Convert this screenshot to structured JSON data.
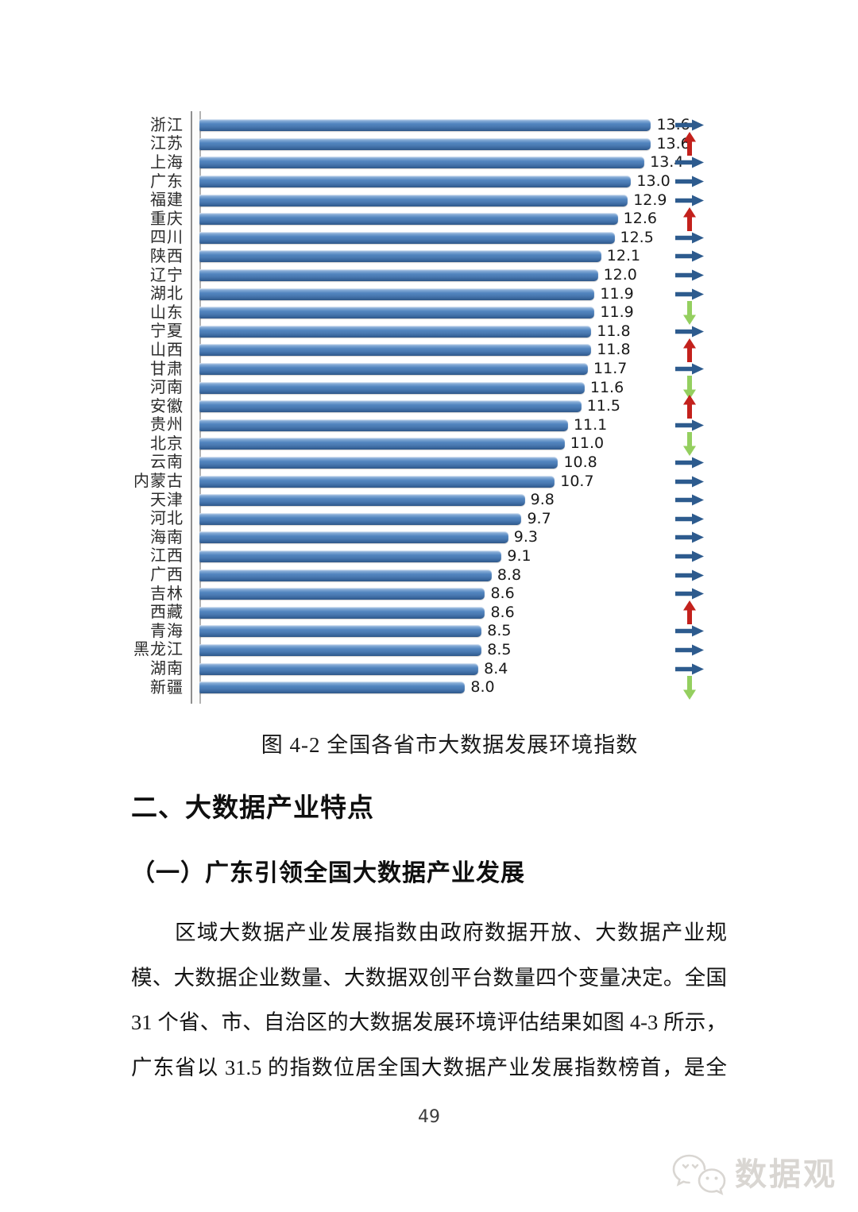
{
  "figure": {
    "caption": "图 4-2 全国各省市大数据发展环境指数"
  },
  "chart_data": {
    "type": "bar",
    "orientation": "horizontal",
    "title": "图 4-2 全国各省市大数据发展环境指数",
    "xlabel": "",
    "ylabel": "",
    "xlim": [
      0,
      15.6
    ],
    "grid": false,
    "legend": "none",
    "value_decimals": 1,
    "bar_color": "#4f81bd",
    "trend_colors": {
      "right": "#2d5b8e",
      "up": "#c3211c",
      "down": "#94cf5f"
    },
    "rows": [
      {
        "name": "浙江",
        "value": 13.6,
        "trend": "right"
      },
      {
        "name": "江苏",
        "value": 13.6,
        "trend": "up"
      },
      {
        "name": "上海",
        "value": 13.4,
        "trend": "right"
      },
      {
        "name": "广东",
        "value": 13.0,
        "trend": "right"
      },
      {
        "name": "福建",
        "value": 12.9,
        "trend": "right"
      },
      {
        "name": "重庆",
        "value": 12.6,
        "trend": "up"
      },
      {
        "name": "四川",
        "value": 12.5,
        "trend": "right"
      },
      {
        "name": "陕西",
        "value": 12.1,
        "trend": "right"
      },
      {
        "name": "辽宁",
        "value": 12.0,
        "trend": "right"
      },
      {
        "name": "湖北",
        "value": 11.9,
        "trend": "right"
      },
      {
        "name": "山东",
        "value": 11.9,
        "trend": "down"
      },
      {
        "name": "宁夏",
        "value": 11.8,
        "trend": "right"
      },
      {
        "name": "山西",
        "value": 11.8,
        "trend": "up"
      },
      {
        "name": "甘肃",
        "value": 11.7,
        "trend": "right"
      },
      {
        "name": "河南",
        "value": 11.6,
        "trend": "down"
      },
      {
        "name": "安徽",
        "value": 11.5,
        "trend": "up"
      },
      {
        "name": "贵州",
        "value": 11.1,
        "trend": "right"
      },
      {
        "name": "北京",
        "value": 11.0,
        "trend": "down"
      },
      {
        "name": "云南",
        "value": 10.8,
        "trend": "right"
      },
      {
        "name": "内蒙古",
        "value": 10.7,
        "trend": "right"
      },
      {
        "name": "天津",
        "value": 9.8,
        "trend": "right"
      },
      {
        "name": "河北",
        "value": 9.7,
        "trend": "right"
      },
      {
        "name": "海南",
        "value": 9.3,
        "trend": "right"
      },
      {
        "name": "江西",
        "value": 9.1,
        "trend": "right"
      },
      {
        "name": "广西",
        "value": 8.8,
        "trend": "right"
      },
      {
        "name": "吉林",
        "value": 8.6,
        "trend": "right"
      },
      {
        "name": "西藏",
        "value": 8.6,
        "trend": "up"
      },
      {
        "name": "青海",
        "value": 8.5,
        "trend": "right"
      },
      {
        "name": "黑龙江",
        "value": 8.5,
        "trend": "right"
      },
      {
        "name": "湖南",
        "value": 8.4,
        "trend": "right"
      },
      {
        "name": "新疆",
        "value": 8.0,
        "trend": "down"
      }
    ]
  },
  "sections": {
    "heading": "二、大数据产业特点",
    "subheading": "（一）广东引领全国大数据产业发展"
  },
  "paragraph": {
    "lines": [
      "区域大数据产业发展指数由政府数据开放、大数据产业规",
      "模、大数据企业数量、大数据双创平台数量四个变量决定。全国",
      "31 个省、市、自治区的大数据发展环境评估结果如图 4-3 所示，",
      "广东省以 31.5 的指数位居全国大数据产业发展指数榜首，是全"
    ]
  },
  "footer": {
    "page_number": "49",
    "watermark_text": "数据观"
  }
}
